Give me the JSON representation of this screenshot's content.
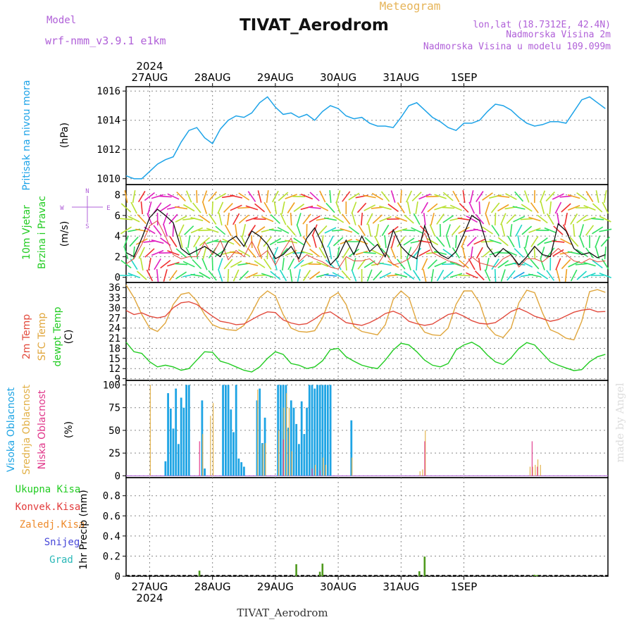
{
  "header": {
    "model_label": "Model",
    "model_name": "wrf-nmm_v3.9.1 e1km",
    "product": "Meteogram",
    "station": "TIVAT_Aerodrom",
    "location": "lon,lat (18.7312E, 42.4N)",
    "elevation": "Nadmorska Visina 2m",
    "model_elevation": "Nadmorska Visina u modelu 109.099m",
    "footer_station": "TIVAT_Aerodrom",
    "credit": "made by Angel"
  },
  "colors": {
    "pressure": "#1da3e8",
    "temp2m": "#e24a3c",
    "sfc_temp": "#e0a63c",
    "dewpoint": "#22cc22",
    "high_cloud": "#1ea4e4",
    "mid_cloud": "#e2b046",
    "low_cloud": "#e0368a",
    "total_precip": "#4f9a1e",
    "conv_precip": "#e23b3b",
    "frz_precip": "#ee8a2a",
    "snow": "#4646d8",
    "graupel": "#2ab8b8",
    "model_purple": "#b060d8",
    "meteogram_title": "#e6b458"
  },
  "chart_data": [
    {
      "type": "line",
      "panel": "pressure",
      "ylabel_title": "Pritisak na nivou mora",
      "ylabel_unit": "(hPa)",
      "ylim": [
        1009.6,
        1016.3
      ],
      "yticks": [
        "1010",
        "1012",
        "1014",
        "1016"
      ],
      "grid": true,
      "x_hours": [
        0,
        3,
        6,
        9,
        12,
        15,
        18,
        21,
        24,
        27,
        30,
        33,
        36,
        39,
        42,
        45,
        48,
        51,
        54,
        57,
        60,
        63,
        66,
        69,
        72,
        75,
        78,
        81,
        84,
        87,
        90,
        93,
        96,
        99,
        102,
        105,
        108,
        111,
        114,
        117,
        120,
        123,
        126,
        129,
        132,
        135,
        138,
        141,
        144,
        147,
        150,
        153,
        156,
        159,
        162,
        165,
        168,
        171,
        174,
        177,
        180,
        183
      ],
      "series": [
        {
          "values": [
            1010.2,
            1010.0,
            1010.0,
            1010.5,
            1011.0,
            1011.3,
            1011.5,
            1012.5,
            1013.3,
            1013.5,
            1012.8,
            1012.4,
            1013.4,
            1014.0,
            1014.3,
            1014.2,
            1014.5,
            1015.2,
            1015.6,
            1014.9,
            1014.4,
            1014.5,
            1014.2,
            1014.4,
            1014.0,
            1014.6,
            1015.0,
            1014.8,
            1014.3,
            1014.1,
            1014.2,
            1013.8,
            1013.6,
            1013.6,
            1013.5,
            1014.2,
            1015.0,
            1015.2,
            1014.7,
            1014.2,
            1013.9,
            1013.5,
            1013.3,
            1013.8,
            1013.8,
            1014.0,
            1014.6,
            1015.1,
            1015.0,
            1014.7,
            1014.2,
            1013.8,
            1013.6,
            1013.7,
            1013.9,
            1013.9,
            1013.8,
            1014.6,
            1015.4,
            1015.6,
            1015.2,
            1014.8
          ]
        }
      ]
    },
    {
      "type": "line",
      "panel": "wind",
      "ylabel_line1": "10m Vjetar",
      "ylabel_line2": "Brzina i Pravac",
      "ylabel_unit": "(m/s)",
      "compass": {
        "n": "N",
        "s": "S",
        "e": "E",
        "w": "W"
      },
      "ylim": [
        -0.5,
        9.0
      ],
      "yticks": [
        "0",
        "2",
        "4",
        "6",
        "8"
      ],
      "grid": true,
      "x_hours": [
        0,
        3,
        6,
        9,
        12,
        15,
        18,
        21,
        24,
        27,
        30,
        33,
        36,
        39,
        42,
        45,
        48,
        51,
        54,
        57,
        60,
        63,
        66,
        69,
        72,
        75,
        78,
        81,
        84,
        87,
        90,
        93,
        96,
        99,
        102,
        105,
        108,
        111,
        114,
        117,
        120,
        123,
        126,
        129,
        132,
        135,
        138,
        141,
        144,
        147,
        150,
        153,
        156,
        159,
        162,
        165,
        168,
        171,
        174,
        177,
        180,
        183
      ],
      "series": [
        {
          "name": "speed",
          "values": [
            2.4,
            2.0,
            3.8,
            5.8,
            6.6,
            6.0,
            5.3,
            2.8,
            2.2,
            2.6,
            3.0,
            2.5,
            2.0,
            3.5,
            4.0,
            3.0,
            4.5,
            4.0,
            3.2,
            1.8,
            2.2,
            3.0,
            1.8,
            3.8,
            4.8,
            3.2,
            1.2,
            2.0,
            3.6,
            2.2,
            4.0,
            2.5,
            3.2,
            2.0,
            4.6,
            3.0,
            2.2,
            1.8,
            5.0,
            3.0,
            2.2,
            1.8,
            2.5,
            4.2,
            6.0,
            5.5,
            3.0,
            2.0,
            2.8,
            2.2,
            1.2,
            2.0,
            3.0,
            2.2,
            2.0,
            5.2,
            4.5,
            2.8,
            2.2,
            2.4,
            1.9,
            2.2
          ]
        },
        {
          "name": "gust",
          "values": [
            1.3,
            1.8,
            3.2,
            5.0,
            5.5,
            4.0,
            2.2,
            1.8,
            2.0,
            2.0,
            3.4,
            2.2,
            3.6,
            1.7,
            2.6,
            2.0,
            3.5,
            2.0,
            2.6,
            1.2,
            2.6,
            3.8,
            1.5,
            2.2,
            1.8,
            1.5,
            1.0,
            0.8,
            2.0,
            1.6,
            1.6,
            1.8,
            1.2,
            2.4,
            1.2,
            1.4,
            1.8,
            2.8,
            4.3,
            2.4,
            2.0,
            1.6,
            1.4,
            1.0,
            2.0,
            1.4,
            1.2,
            1.0,
            1.8,
            2.2,
            1.0,
            1.8,
            1.8,
            1.5,
            2.1,
            2.8,
            2.2,
            1.6,
            1.4,
            1.8,
            1.5,
            1.6
          ]
        }
      ]
    },
    {
      "type": "line",
      "panel": "temperature",
      "ylabel_temp": "2m Temp",
      "ylabel_sfc": "SFC Temp",
      "ylabel_dew": "dewpt Temp",
      "ylabel_unit": "(C)",
      "ylim": [
        8.5,
        37.5
      ],
      "yticks": [
        "9",
        "12",
        "15",
        "18",
        "21",
        "24",
        "27",
        "30",
        "33",
        "36"
      ],
      "grid": true,
      "x_hours": [
        0,
        3,
        6,
        9,
        12,
        15,
        18,
        21,
        24,
        27,
        30,
        33,
        36,
        39,
        42,
        45,
        48,
        51,
        54,
        57,
        60,
        63,
        66,
        69,
        72,
        75,
        78,
        81,
        84,
        87,
        90,
        93,
        96,
        99,
        102,
        105,
        108,
        111,
        114,
        117,
        120,
        123,
        126,
        129,
        132,
        135,
        138,
        141,
        144,
        147,
        150,
        153,
        156,
        159,
        162,
        165,
        168,
        171,
        174,
        177,
        180,
        183
      ],
      "series": [
        {
          "name": "2m Temp",
          "values": [
            29.2,
            28.0,
            28.5,
            27.5,
            27.0,
            27.5,
            30.0,
            31.5,
            31.8,
            31.0,
            29.2,
            27.5,
            26.0,
            25.6,
            25.0,
            25.2,
            26.5,
            27.8,
            28.8,
            28.6,
            26.4,
            25.5,
            25.0,
            25.3,
            26.7,
            28.3,
            28.8,
            27.3,
            25.6,
            25.2,
            24.8,
            25.6,
            26.8,
            28.3,
            29.0,
            28.0,
            26.0,
            25.3,
            24.8,
            25.2,
            26.6,
            28.0,
            28.5,
            27.5,
            26.2,
            25.4,
            25.2,
            25.6,
            27.2,
            28.9,
            29.8,
            28.8,
            27.5,
            26.8,
            26.0,
            26.5,
            27.6,
            28.7,
            29.3,
            29.6,
            28.8,
            28.9
          ]
        },
        {
          "name": "SFC Temp",
          "values": [
            36.8,
            33.0,
            28.0,
            24.0,
            23.0,
            25.5,
            31.0,
            34.0,
            34.5,
            32.0,
            28.0,
            25.0,
            24.0,
            23.5,
            23.3,
            24.8,
            28.5,
            33.0,
            35.0,
            33.5,
            28.0,
            24.0,
            23.0,
            22.8,
            23.2,
            27.0,
            33.0,
            34.5,
            31.0,
            24.5,
            23.0,
            22.5,
            22.0,
            25.0,
            32.5,
            35.0,
            33.0,
            26.0,
            22.8,
            22.0,
            21.8,
            24.0,
            31.0,
            35.0,
            35.0,
            31.5,
            24.5,
            22.0,
            21.2,
            24.0,
            31.5,
            35.2,
            34.5,
            28.5,
            23.5,
            22.5,
            21.0,
            20.5,
            26.0,
            34.8,
            35.4,
            34.6
          ]
        },
        {
          "name": "dewpt Temp",
          "values": [
            19.8,
            17.0,
            16.5,
            14.0,
            12.5,
            13.0,
            12.5,
            11.5,
            12.0,
            14.5,
            17.0,
            16.8,
            14.2,
            13.5,
            12.5,
            11.5,
            11.0,
            12.5,
            15.0,
            17.0,
            16.2,
            13.5,
            13.0,
            12.0,
            12.5,
            14.3,
            17.6,
            18.0,
            15.5,
            14.2,
            13.0,
            12.4,
            12.0,
            14.5,
            17.5,
            19.5,
            19.0,
            17.0,
            14.5,
            13.0,
            12.5,
            13.5,
            17.5,
            19.0,
            19.8,
            18.5,
            16.0,
            14.0,
            13.2,
            15.2,
            18.0,
            19.7,
            19.0,
            16.5,
            14.0,
            13.0,
            12.2,
            11.4,
            11.7,
            14.0,
            15.5,
            16.2
          ]
        }
      ]
    },
    {
      "type": "bar",
      "panel": "cloud",
      "ylabel_high": "Visoka Oblacnost",
      "ylabel_mid": "Srednja Oblacnost",
      "ylabel_low": "Niska Oblacnost",
      "ylabel_unit": "(%)",
      "ylim": [
        -2,
        105
      ],
      "yticks": [
        "0",
        "25",
        "50",
        "75",
        "100"
      ],
      "grid": true,
      "high": [
        [
          15,
          16
        ],
        [
          16,
          91
        ],
        [
          17,
          74
        ],
        [
          18,
          52
        ],
        [
          19,
          96
        ],
        [
          20,
          35
        ],
        [
          21,
          86
        ],
        [
          22,
          75
        ],
        [
          23,
          100
        ],
        [
          24,
          100
        ],
        [
          29,
          83
        ],
        [
          30,
          8
        ],
        [
          37,
          100
        ],
        [
          38,
          100
        ],
        [
          39,
          100
        ],
        [
          40,
          73
        ],
        [
          41,
          48
        ],
        [
          42,
          100
        ],
        [
          43,
          19
        ],
        [
          44,
          15
        ],
        [
          45,
          10
        ],
        [
          50,
          83
        ],
        [
          51,
          96
        ],
        [
          52,
          36
        ],
        [
          53,
          64
        ],
        [
          58,
          100
        ],
        [
          59,
          100
        ],
        [
          60,
          100
        ],
        [
          61,
          100
        ],
        [
          62,
          53
        ],
        [
          63,
          83
        ],
        [
          64,
          75
        ],
        [
          65,
          57
        ],
        [
          66,
          35
        ],
        [
          67,
          82
        ],
        [
          68,
          46
        ],
        [
          69,
          75
        ],
        [
          70,
          100
        ],
        [
          71,
          100
        ],
        [
          72,
          96
        ],
        [
          73,
          100
        ],
        [
          74,
          100
        ],
        [
          75,
          100
        ],
        [
          76,
          100
        ],
        [
          77,
          100
        ],
        [
          78,
          100
        ],
        [
          86,
          61
        ]
      ],
      "mid": [
        [
          9,
          100
        ],
        [
          29,
          46
        ],
        [
          32,
          66
        ],
        [
          33,
          80
        ],
        [
          50,
          95
        ],
        [
          52,
          35
        ],
        [
          53,
          36
        ],
        [
          58,
          50
        ],
        [
          60,
          75
        ],
        [
          61,
          91
        ],
        [
          62,
          75
        ],
        [
          63,
          27
        ],
        [
          72,
          12
        ],
        [
          75,
          20
        ],
        [
          76,
          12
        ],
        [
          86,
          20
        ],
        [
          112,
          5
        ],
        [
          113,
          7
        ],
        [
          114,
          50
        ],
        [
          154,
          10
        ],
        [
          155,
          10
        ],
        [
          156,
          12
        ],
        [
          157,
          18
        ],
        [
          158,
          12
        ]
      ],
      "low": [
        [
          28,
          38
        ],
        [
          60,
          40
        ],
        [
          71,
          8
        ],
        [
          74,
          6
        ],
        [
          114,
          38
        ],
        [
          155,
          38
        ],
        [
          157,
          10
        ]
      ]
    },
    {
      "type": "bar",
      "panel": "precip",
      "legend_total": "Ukupna Kisa",
      "legend_conv": "Konvek.Kisa",
      "legend_frz": "Zaledj.Kisa",
      "legend_snow": "Snijeg",
      "legend_grad": "Grad",
      "ylabel_unit": "1hr Precip (mm)",
      "ylim": [
        0,
        0.98
      ],
      "yticks": [
        "0",
        "0.2",
        "0.4",
        "0.6",
        "0.8"
      ],
      "grid": true,
      "total": [
        [
          28,
          0.055
        ],
        [
          65,
          0.12
        ],
        [
          74,
          0.045
        ],
        [
          75,
          0.125
        ],
        [
          112,
          0.05
        ],
        [
          114,
          0.195
        ],
        [
          156,
          0.015
        ],
        [
          157,
          0.012
        ]
      ]
    }
  ],
  "axes": {
    "year_top": "2024",
    "year_bottom": "2024",
    "day_labels": [
      "27AUG",
      "28AUG",
      "29AUG",
      "30AUG",
      "31AUG",
      "1SEP"
    ],
    "day_hours": [
      9,
      33,
      57,
      81,
      105,
      129
    ]
  }
}
